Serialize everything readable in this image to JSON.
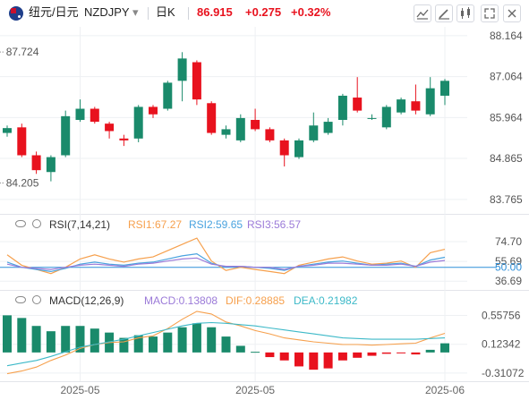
{
  "toolbar": {
    "symbol_cn": "纽元/日元",
    "symbol": "NZDJPY",
    "period": "日K",
    "last": "86.915",
    "change": "+0.275",
    "change_pct": "+0.32%",
    "tools": [
      "indicator-icon",
      "draw-icon",
      "candles-icon",
      "fullscreen-icon",
      "close-icon"
    ]
  },
  "colors": {
    "up": "#1a8a6b",
    "down": "#e8121e",
    "grid": "#eef0f3",
    "rsi1": "#f6a04d",
    "rsi2": "#4aa3df",
    "rsi3": "#9b7ad8",
    "macd_line": "#9b7ad8",
    "dif": "#f6a04d",
    "dea": "#3db9c8",
    "ref50": "#2f8fd8"
  },
  "chart_data": [
    {
      "type": "candlestick",
      "title": "",
      "ylim": [
        83.4,
        88.4
      ],
      "y_ticks": [
        "88.164",
        "87.064",
        "85.964",
        "84.865",
        "83.765"
      ],
      "y_tick_values": [
        88.164,
        87.064,
        85.964,
        84.865,
        83.765
      ],
      "high_annotation": "87.724",
      "high_value": 87.724,
      "low_annotation": "84.205",
      "low_value": 84.205,
      "x_tick_labels": [
        "2025-05",
        "2025-05",
        "2025-06"
      ],
      "x_tick_index": [
        5,
        17,
        30
      ],
      "candles": [
        [
          85.55,
          85.68,
          85.45,
          85.75
        ],
        [
          85.7,
          84.95,
          84.9,
          85.8
        ],
        [
          84.95,
          84.55,
          84.45,
          85.05
        ],
        [
          84.5,
          84.9,
          84.25,
          84.95
        ],
        [
          84.95,
          86.0,
          84.9,
          86.15
        ],
        [
          85.9,
          86.2,
          85.85,
          86.45
        ],
        [
          86.2,
          85.85,
          85.8,
          86.25
        ],
        [
          85.8,
          85.6,
          85.4,
          85.85
        ],
        [
          85.4,
          85.35,
          85.2,
          85.5
        ],
        [
          85.4,
          86.25,
          85.3,
          86.3
        ],
        [
          86.25,
          86.05,
          85.95,
          86.3
        ],
        [
          86.2,
          86.9,
          86.15,
          86.95
        ],
        [
          86.95,
          87.55,
          86.4,
          87.72
        ],
        [
          87.45,
          86.45,
          86.3,
          87.5
        ],
        [
          86.35,
          85.55,
          85.5,
          86.4
        ],
        [
          85.5,
          85.65,
          85.4,
          85.75
        ],
        [
          85.35,
          85.95,
          85.3,
          86.05
        ],
        [
          85.9,
          85.65,
          85.6,
          86.2
        ],
        [
          85.65,
          85.35,
          85.3,
          85.7
        ],
        [
          85.35,
          84.95,
          84.65,
          85.4
        ],
        [
          84.9,
          85.35,
          84.85,
          85.4
        ],
        [
          85.35,
          85.75,
          85.3,
          86.1
        ],
        [
          85.55,
          85.85,
          85.5,
          85.95
        ],
        [
          85.9,
          86.55,
          85.75,
          86.6
        ],
        [
          86.5,
          86.15,
          86.1,
          87.05
        ],
        [
          85.95,
          85.95,
          85.9,
          86.05
        ],
        [
          85.7,
          86.25,
          85.65,
          86.3
        ],
        [
          86.1,
          86.45,
          86.05,
          86.5
        ],
        [
          86.4,
          86.15,
          86.05,
          86.85
        ],
        [
          86.05,
          86.75,
          86.0,
          87.05
        ],
        [
          86.55,
          86.95,
          86.3,
          87.0
        ]
      ]
    },
    {
      "type": "line",
      "title": "RSI(7,14,21)",
      "series_labels": [
        "RSI1:67.27",
        "RSI2:59.65",
        "RSI3:56.57"
      ],
      "ylim": [
        30,
        85
      ],
      "y_ticks": [
        "74.70",
        "55.69",
        "50.00",
        "36.69"
      ],
      "y_tick_values": [
        74.7,
        55.69,
        50.0,
        36.69
      ],
      "ref_line": 50,
      "series": [
        {
          "name": "RSI1",
          "values": [
            62,
            52,
            48,
            44,
            50,
            58,
            62,
            58,
            55,
            58,
            60,
            66,
            72,
            78,
            56,
            47,
            50,
            48,
            46,
            44,
            52,
            55,
            58,
            60,
            56,
            53,
            54,
            56,
            50,
            64,
            67.27
          ]
        },
        {
          "name": "RSI2",
          "values": [
            55,
            50,
            48,
            46,
            49,
            53,
            55,
            53,
            52,
            54,
            55,
            58,
            61,
            63,
            54,
            50,
            51,
            50,
            49,
            47,
            51,
            53,
            55,
            56,
            54,
            52,
            53,
            54,
            51,
            57,
            59.65
          ]
        },
        {
          "name": "RSI3",
          "values": [
            53,
            50,
            49,
            48,
            50,
            52,
            53,
            52,
            51,
            53,
            54,
            56,
            58,
            59,
            53,
            51,
            51,
            50,
            50,
            48,
            51,
            52,
            54,
            54,
            53,
            52,
            52,
            53,
            51,
            55,
            56.57
          ]
        }
      ]
    },
    {
      "type": "bar",
      "title": "MACD(12,26,9)",
      "series_labels": [
        "MACD:0.13808",
        "DIF:0.28885",
        "DEA:0.21982"
      ],
      "ylim": [
        -0.42,
        0.7
      ],
      "y_ticks": [
        "0.55756",
        "0.12342",
        "-0.31072"
      ],
      "y_tick_values": [
        0.55756,
        0.12342,
        -0.31072
      ],
      "macd": [
        0.56,
        0.52,
        0.4,
        0.32,
        0.4,
        0.4,
        0.36,
        0.3,
        0.22,
        0.26,
        0.24,
        0.3,
        0.38,
        0.44,
        0.38,
        0.24,
        0.1,
        0.01,
        -0.07,
        -0.12,
        -0.21,
        -0.26,
        -0.24,
        -0.12,
        -0.08,
        -0.05,
        -0.02,
        -0.01,
        -0.03,
        0.04,
        0.13808
      ],
      "dif": [
        -0.32,
        -0.28,
        -0.22,
        -0.12,
        -0.04,
        0.06,
        0.12,
        0.15,
        0.16,
        0.22,
        0.25,
        0.36,
        0.5,
        0.62,
        0.58,
        0.46,
        0.4,
        0.33,
        0.28,
        0.22,
        0.19,
        0.16,
        0.14,
        0.12,
        0.12,
        0.11,
        0.12,
        0.13,
        0.14,
        0.22,
        0.28885
      ],
      "dea": [
        -0.2,
        -0.16,
        -0.12,
        -0.06,
        0.01,
        0.08,
        0.12,
        0.16,
        0.2,
        0.25,
        0.3,
        0.35,
        0.4,
        0.44,
        0.45,
        0.44,
        0.42,
        0.4,
        0.37,
        0.34,
        0.31,
        0.28,
        0.25,
        0.22,
        0.21,
        0.2,
        0.2,
        0.2,
        0.2,
        0.21,
        0.21982
      ]
    }
  ]
}
